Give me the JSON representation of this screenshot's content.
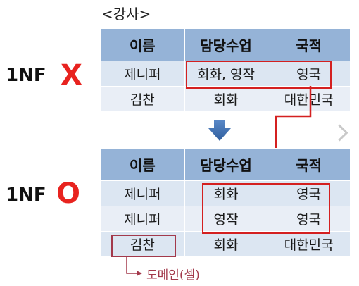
{
  "title": "<강사>",
  "rows_label": {
    "top": {
      "nf": "1NF",
      "mark": "X"
    },
    "bottom": {
      "nf": "1NF",
      "mark": "O"
    }
  },
  "table_top": {
    "headers": [
      "이름",
      "담당수업",
      "국적"
    ],
    "rows": [
      [
        "제니퍼",
        "회화, 영작",
        "영국"
      ],
      [
        "김찬",
        "회화",
        "대한민국"
      ]
    ]
  },
  "table_bottom": {
    "headers": [
      "이름",
      "담당수업",
      "국적"
    ],
    "rows": [
      [
        "제니퍼",
        "회화",
        "영국"
      ],
      [
        "제니퍼",
        "영작",
        "영국"
      ],
      [
        "김찬",
        "회화",
        "대한민국"
      ]
    ]
  },
  "domain_label": "도메인(셀)",
  "colors": {
    "header_bg": "#95b3d7",
    "cell_bg": "#dce6f2",
    "highlight_red": "#d42020",
    "mark_red": "#e8231f",
    "arrow_blue": "#2f5e9e",
    "domain_text": "#a3394b"
  }
}
